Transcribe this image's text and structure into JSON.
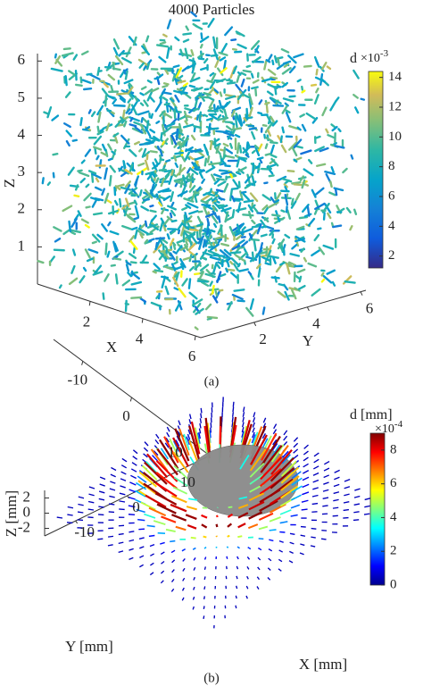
{
  "chart_data": [
    {
      "type": "streak3d",
      "title": "4000 Particles",
      "xlabel": "X",
      "ylabel": "Y",
      "zlabel": "Z",
      "xlim": [
        0,
        6.2
      ],
      "ylim": [
        0,
        6.2
      ],
      "zlim": [
        0,
        6.2
      ],
      "xticks": [
        2,
        4,
        6
      ],
      "yticks": [
        2,
        4,
        6
      ],
      "zticks": [
        1,
        2,
        3,
        4,
        5,
        6
      ],
      "colorbar": {
        "label": "d",
        "base": "×10",
        "exponent": -3,
        "clim": [
          1.2,
          14.4
        ],
        "ticks": [
          2,
          4,
          6,
          8,
          10,
          12,
          14
        ]
      },
      "caption": "(a)"
    },
    {
      "type": "quiver3d",
      "xlabel": "X [mm]",
      "ylabel": "Y [mm]",
      "zlabel": "Z [mm]",
      "xlim": [
        -16,
        16
      ],
      "ylim": [
        -16,
        16
      ],
      "zlim": [
        -3,
        3
      ],
      "xticks": [
        -10,
        0,
        10
      ],
      "yticks": [
        -10,
        0,
        10
      ],
      "zticks": [
        -2,
        0,
        2
      ],
      "colorbar": {
        "label": "d [mm]",
        "base": "×10",
        "exponent": -4,
        "clim": [
          0,
          9
        ],
        "ticks": [
          0,
          2,
          4,
          6,
          8
        ]
      },
      "caption": "(b)"
    }
  ]
}
